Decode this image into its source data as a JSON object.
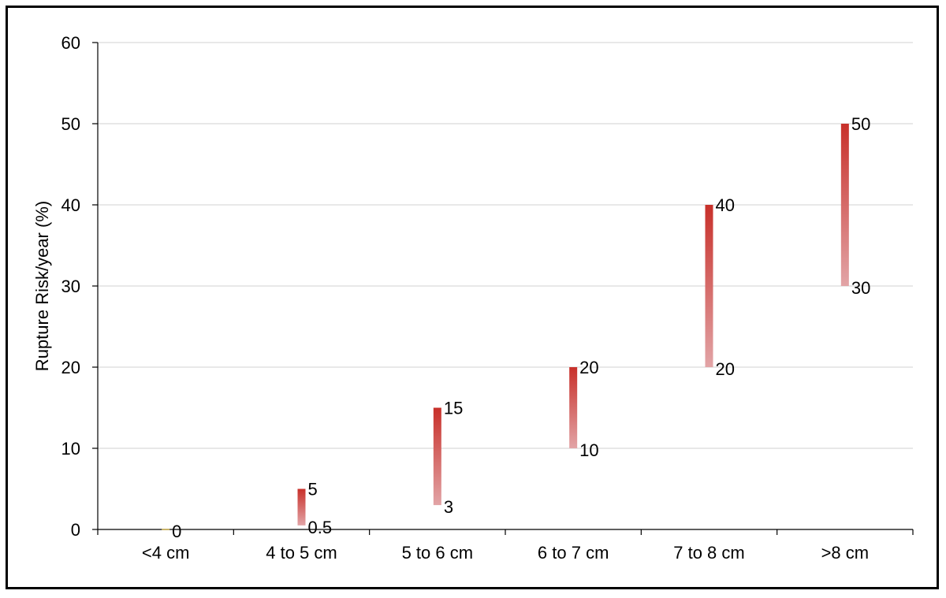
{
  "chart_data": {
    "type": "floating-bar",
    "title": "",
    "xlabel": "",
    "ylabel": "Rupture Risk/year (%)",
    "ylim": [
      0,
      60
    ],
    "yticks": [
      0,
      10,
      20,
      30,
      40,
      50,
      60
    ],
    "grid": "horizontal",
    "legend": "none",
    "categories": [
      "<4 cm",
      "4 to 5 cm",
      "5 to 6 cm",
      "6 to 7 cm",
      "7 to 8 cm",
      ">8 cm"
    ],
    "series": [
      {
        "low": [
          0,
          0.5,
          3,
          10,
          20,
          30
        ],
        "high": [
          0,
          5,
          15,
          20,
          40,
          50
        ]
      }
    ],
    "low_labels": [
      "0",
      "0.5",
      "3",
      "10",
      "20",
      "30"
    ],
    "high_labels": [
      "",
      "5",
      "15",
      "20",
      "40",
      "50"
    ],
    "colors": {
      "bar_top": "#c8302a",
      "bar_bottom": "#e2a4a6",
      "grid": "#d9d9d9",
      "axis": "#000000"
    }
  }
}
